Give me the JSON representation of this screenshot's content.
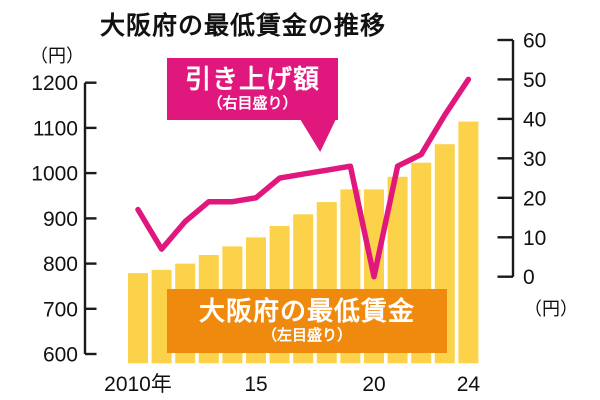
{
  "title": "大阪府の最低賃金の推移",
  "colors": {
    "bar": "#FCD24A",
    "line": "#E0187D",
    "callout_pink_bg": "#E0187D",
    "callout_orange_bg": "#EF8A0F",
    "axis": "#1A1A1A",
    "background": "#FFFFFF",
    "callout_text": "#FFFFFF"
  },
  "left_axis": {
    "unit": "（円）",
    "min": 600,
    "max": 1200,
    "step": 100,
    "tick_labels": [
      "1200",
      "1100",
      "1000",
      "900",
      "800",
      "700",
      "600"
    ]
  },
  "right_axis": {
    "unit": "（円）",
    "min": 0,
    "max": 60,
    "step": 10,
    "tick_labels": [
      "60",
      "50",
      "40",
      "30",
      "20",
      "10",
      "0"
    ]
  },
  "x_axis": {
    "tick_labels": [
      {
        "label": "2010年",
        "year": 2010
      },
      {
        "label": "15",
        "year": 2015
      },
      {
        "label": "20",
        "year": 2020
      },
      {
        "label": "24",
        "year": 2024
      }
    ]
  },
  "callouts": {
    "line_label": {
      "text": "引き上げ額",
      "subtext": "（右目盛り）"
    },
    "bar_label": {
      "text": "大阪府の最低賃金",
      "subtext": "（左目盛り）"
    }
  },
  "chart_data": {
    "type": "bar+line combo",
    "title": "大阪府の最低賃金の推移",
    "x": [
      2010,
      2011,
      2012,
      2013,
      2014,
      2015,
      2016,
      2017,
      2018,
      2019,
      2020,
      2021,
      2022,
      2023,
      2024
    ],
    "series": [
      {
        "name": "大阪府の最低賃金",
        "type": "bar",
        "axis": "left",
        "unit": "円",
        "values": [
          779,
          786,
          800,
          819,
          838,
          858,
          883,
          909,
          936,
          964,
          964,
          992,
          1023,
          1064,
          1114
        ]
      },
      {
        "name": "引き上げ額",
        "type": "line",
        "axis": "right",
        "unit": "円",
        "values": [
          17,
          7,
          14,
          19,
          19,
          20,
          25,
          26,
          27,
          28,
          0,
          28,
          31,
          41,
          50
        ]
      }
    ],
    "left_ylim": [
      600,
      1200
    ],
    "right_ylim": [
      0,
      60
    ],
    "grid": false,
    "legend": "inline callout boxes pointing at each series"
  }
}
